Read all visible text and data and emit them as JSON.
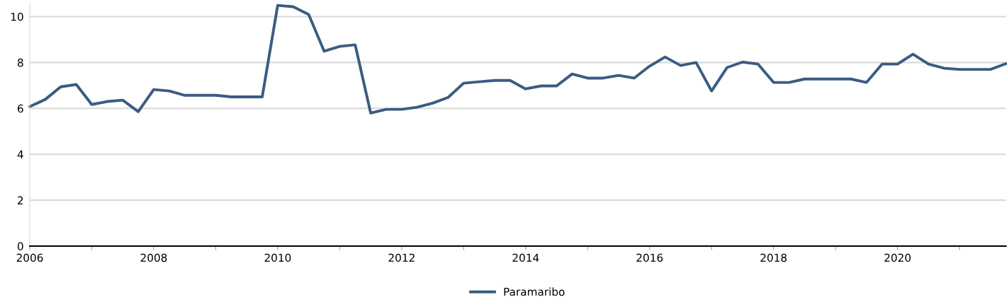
{
  "chart_data": {
    "type": "line",
    "x": [
      2006,
      2006.25,
      2006.5,
      2006.75,
      2007,
      2007.25,
      2007.5,
      2007.75,
      2008,
      2008.25,
      2008.5,
      2008.75,
      2009,
      2009.25,
      2009.5,
      2009.75,
      2010,
      2010.25,
      2010.5,
      2010.75,
      2011,
      2011.25,
      2011.5,
      2011.75,
      2012,
      2012.25,
      2012.5,
      2012.75,
      2013,
      2013.25,
      2013.5,
      2013.75,
      2014,
      2014.25,
      2014.5,
      2014.75,
      2015,
      2015.25,
      2015.5,
      2015.75,
      2016,
      2016.25,
      2016.5,
      2016.75,
      2017,
      2017.25,
      2017.5,
      2017.75,
      2018,
      2018.25,
      2018.5,
      2018.75,
      2019,
      2019.25,
      2019.5,
      2019.75,
      2020,
      2020.25,
      2020.5,
      2020.75,
      2021,
      2021.25,
      2021.5,
      2021.75
    ],
    "series": [
      {
        "name": "Paramaribo",
        "color": "#3b5b82",
        "values": [
          6.08,
          6.39,
          6.94,
          7.04,
          6.17,
          6.3,
          6.36,
          5.86,
          6.82,
          6.76,
          6.57,
          6.57,
          6.57,
          6.5,
          6.5,
          6.5,
          10.49,
          10.43,
          10.09,
          8.49,
          8.7,
          8.77,
          5.8,
          5.96,
          5.96,
          6.05,
          6.23,
          6.48,
          7.1,
          7.16,
          7.22,
          7.22,
          6.85,
          6.98,
          6.98,
          7.5,
          7.32,
          7.32,
          7.44,
          7.32,
          7.84,
          8.24,
          7.87,
          8.0,
          6.76,
          7.78,
          8.02,
          7.93,
          7.13,
          7.13,
          7.28,
          7.28,
          7.28,
          7.28,
          7.13,
          7.93,
          7.93,
          8.36,
          7.93,
          7.75,
          7.7,
          7.7,
          7.7,
          7.95
        ]
      }
    ],
    "xlim": [
      2006,
      2021.75
    ],
    "xticks": [
      2006,
      {
        "value": 2007,
        "label": null
      },
      2008,
      {
        "value": 2009,
        "label": null
      },
      2010,
      {
        "value": 2011,
        "label": null
      },
      2012,
      {
        "value": 2013,
        "label": null
      },
      2014,
      {
        "value": 2015,
        "label": null
      },
      2016,
      {
        "value": 2017,
        "label": null
      },
      2018,
      {
        "value": 2019,
        "label": null
      },
      2020,
      {
        "value": 2021,
        "label": null
      }
    ],
    "ylim": [
      0,
      10.6
    ],
    "yticks": [
      0,
      2,
      4,
      6,
      8,
      10
    ],
    "grid": "y",
    "legend": "bottom",
    "marker": "none",
    "line_style": "solid"
  }
}
